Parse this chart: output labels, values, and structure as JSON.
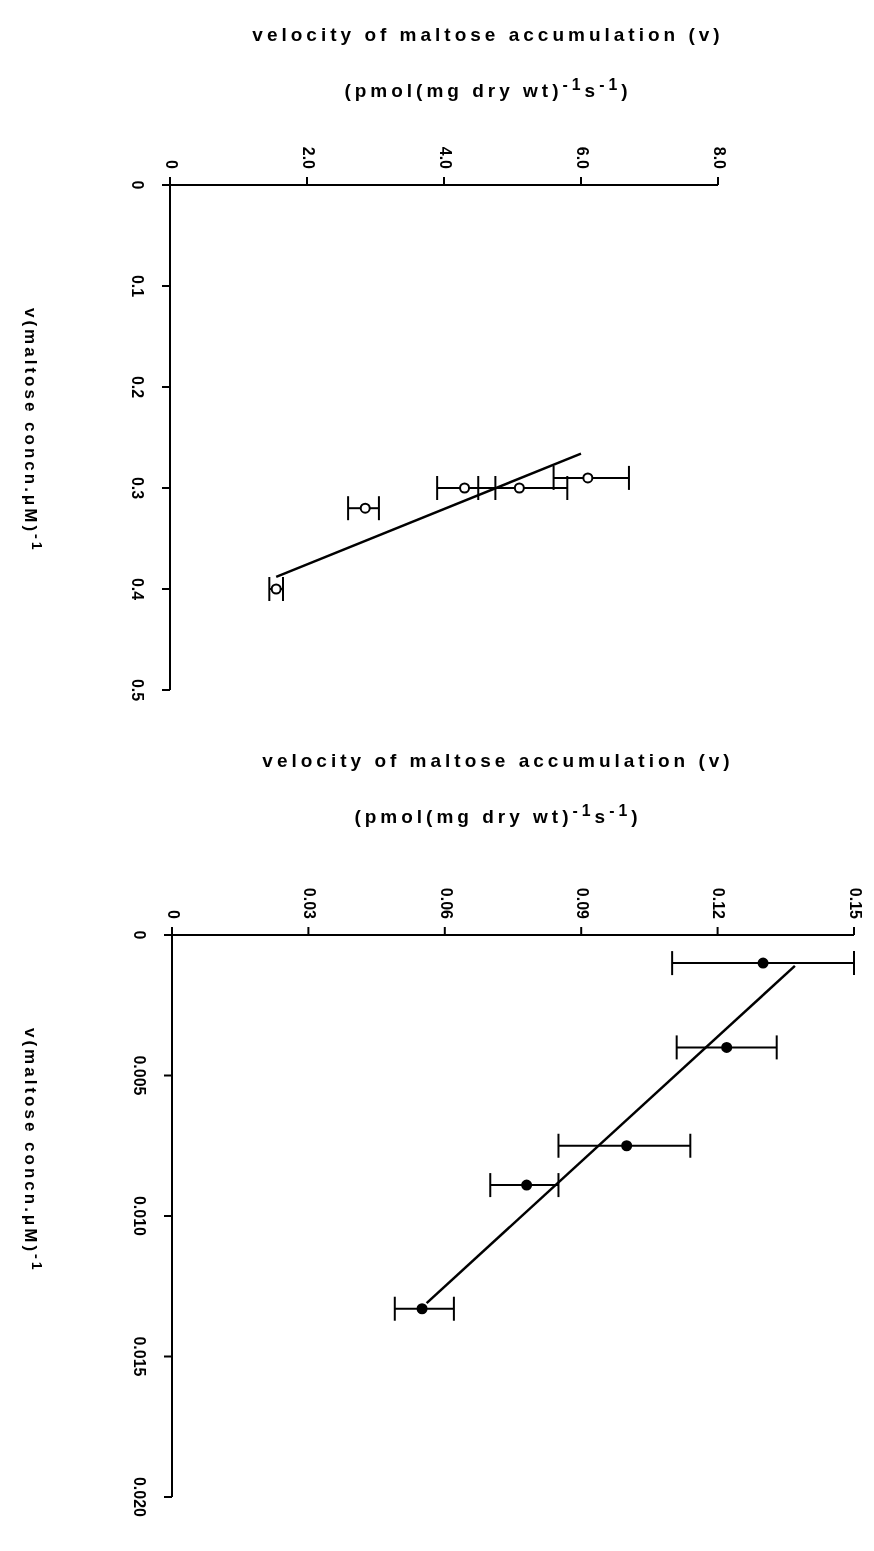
{
  "chart_data": [
    {
      "type": "scatter",
      "xlabel": "velocity of maltose accumulation (v) (pmol(mg dry wt)$^{-1}$s$^{-1}$)",
      "ylabel": "v(maltose concn.μM)$^{-1}$",
      "xlim": [
        0,
        8
      ],
      "ylim": [
        0.5,
        0
      ],
      "xticks": [
        0,
        {
          "value": 2,
          "label": "2.0"
        },
        {
          "value": 4,
          "label": "4.0"
        },
        {
          "value": 6,
          "label": "6.0"
        },
        {
          "value": 8,
          "label": "8.0"
        }
      ],
      "yticks": [
        0,
        0.1,
        0.2,
        0.3,
        0.4,
        0.5
      ],
      "series": [
        {
          "marker": "circle",
          "color": "#ffffff",
          "x": [
            6.1,
            5.1,
            4.3,
            2.85,
            1.55
          ],
          "values": [
            0.29,
            0.3,
            0.3,
            0.32,
            0.4
          ],
          "xerrors": [
            [
              5.6,
              6.7
            ],
            [
              4.5,
              5.8
            ],
            [
              3.9,
              4.75
            ],
            [
              2.6,
              3.05
            ],
            [
              1.45,
              1.65
            ]
          ]
        },
        {
          "type": "line",
          "color": "#000000",
          "x": [
            1.55,
            6.0
          ],
          "values": [
            0.388,
            0.266
          ]
        }
      ]
    },
    {
      "type": "scatter",
      "xlabel": "velocity of maltose accumulation (v) (pmol(mg dry wt)$^{-1}$s$^{-1}$)",
      "ylabel": "v(maltose concn.μM)$^{-1}$",
      "xlim": [
        0,
        0.15
      ],
      "ylim": [
        0.02,
        0
      ],
      "xticks": [
        0,
        0.03,
        0.06,
        0.09,
        0.12,
        0.15
      ],
      "yticks": [
        0,
        0.005,
        {
          "value": 0.01,
          "label": "0.010"
        },
        0.015,
        {
          "value": 0.02,
          "label": "0.020"
        }
      ],
      "series": [
        {
          "marker": "circle",
          "color": "#000000",
          "x": [
            0.13,
            0.122,
            0.1,
            0.078,
            0.055
          ],
          "values": [
            0.001,
            0.004,
            0.0075,
            0.0089,
            0.0133
          ],
          "xerrors": [
            [
              0.11,
              0.15
            ],
            [
              0.111,
              0.133
            ],
            [
              0.085,
              0.114
            ],
            [
              0.07,
              0.085
            ],
            [
              0.049,
              0.062
            ]
          ]
        },
        {
          "type": "line",
          "color": "#000000",
          "x": [
            0.137,
            0.056
          ],
          "values": [
            0.0011,
            0.0131
          ]
        }
      ]
    }
  ]
}
